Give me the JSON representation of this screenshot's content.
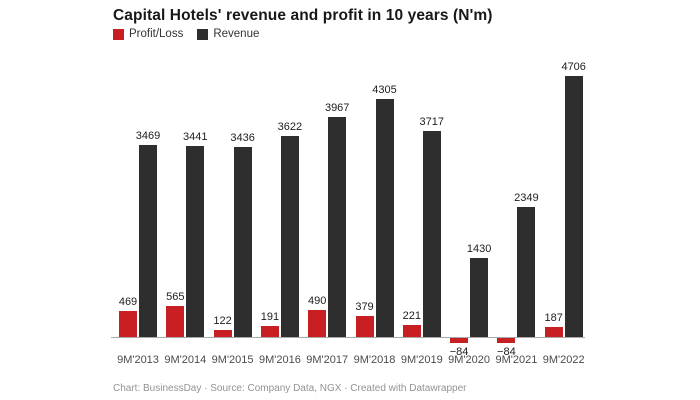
{
  "title": "Capital Hotels' revenue and profit in 10 years (N'm)",
  "legend": [
    {
      "label": "Profit/Loss",
      "color": "#c71f22"
    },
    {
      "label": "Revenue",
      "color": "#2e2e2e"
    }
  ],
  "footer": "Chart: BusinessDay · Source: Company Data, NGX · Created with Datawrapper",
  "colors": {
    "profit_loss": "#c71f22",
    "revenue": "#2e2e2e",
    "axis_line": "#a9a9a9",
    "title_text": "#181818",
    "label_text": "#1d1d1d",
    "category_text": "#4c4c4c",
    "attribution_text": "#939393",
    "background": "#ffffff"
  },
  "chart_data": {
    "type": "bar",
    "title": "Capital Hotels' revenue and profit in 10 years (N'm)",
    "categories": [
      "9M'2013",
      "9M'2014",
      "9M'2015",
      "9M'2016",
      "9M'2017",
      "9M'2018",
      "9M'2019",
      "9M'2020",
      "9M'2021",
      "9M'2022"
    ],
    "series": [
      {
        "name": "Profit/Loss",
        "color": "#c71f22",
        "values": [
          469,
          565,
          122,
          191,
          490,
          379,
          221,
          -84,
          -84,
          187
        ]
      },
      {
        "name": "Revenue",
        "color": "#2e2e2e",
        "values": [
          3469,
          3441,
          3436,
          3622,
          3967,
          4305,
          3717,
          1430,
          2349,
          4706
        ]
      }
    ],
    "xlabel": "",
    "ylabel": "",
    "ylim": [
      -200,
      5000
    ],
    "grid": false,
    "value_labels": true,
    "legend_position": "top-left",
    "attribution": "Chart: BusinessDay · Source: Company Data, NGX · Created with Datawrapper"
  }
}
